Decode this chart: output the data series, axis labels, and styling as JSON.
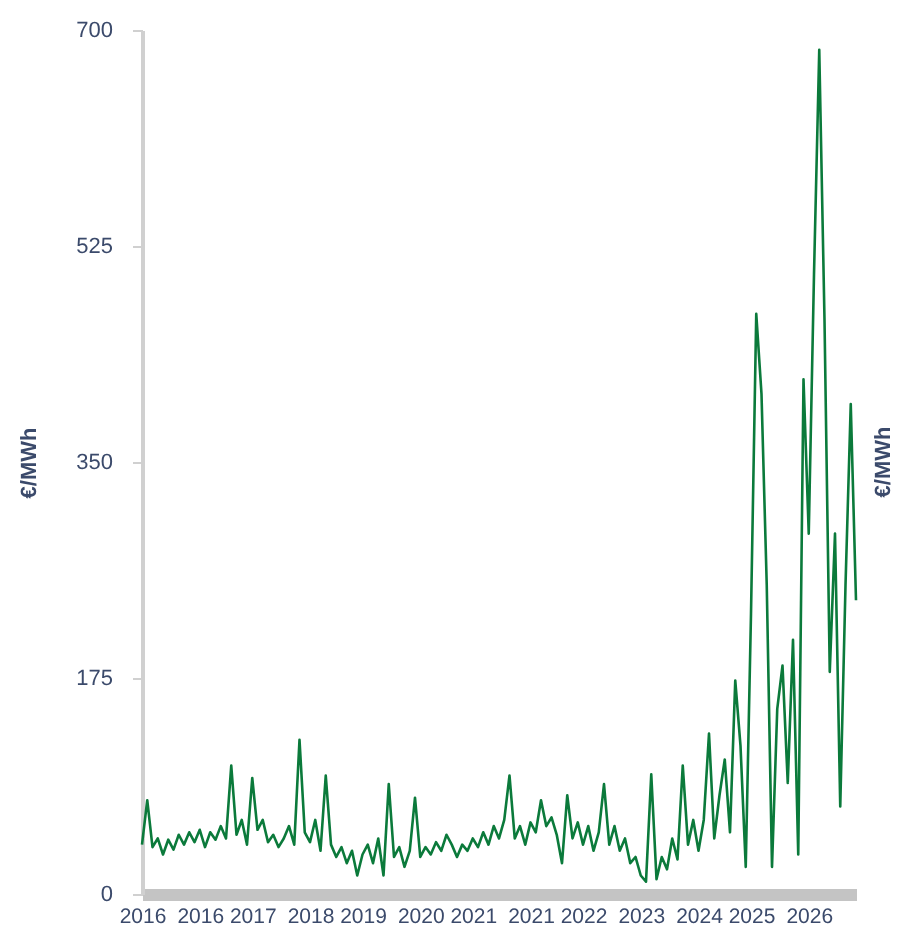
{
  "chart_data": {
    "type": "line",
    "ylabel": "€/MWh",
    "y2label": "€/MWh",
    "ylim": [
      0,
      700
    ],
    "yticks": [
      0,
      175,
      350,
      525,
      700
    ],
    "categories": [
      "2016",
      null,
      null,
      null,
      null,
      null,
      null,
      null,
      null,
      null,
      null,
      "2016",
      null,
      null,
      null,
      null,
      null,
      null,
      null,
      null,
      null,
      "2017",
      null,
      null,
      null,
      null,
      null,
      null,
      null,
      null,
      null,
      null,
      "2018",
      null,
      null,
      null,
      null,
      null,
      null,
      null,
      null,
      null,
      "2019",
      null,
      null,
      null,
      null,
      null,
      null,
      null,
      null,
      null,
      null,
      "2020",
      null,
      null,
      null,
      null,
      null,
      null,
      null,
      null,
      null,
      "2021",
      null,
      null,
      null,
      null,
      null,
      null,
      null,
      null,
      null,
      null,
      "2021",
      null,
      null,
      null,
      null,
      null,
      null,
      null,
      null,
      null,
      "2022",
      null,
      null,
      null,
      null,
      null,
      null,
      null,
      null,
      null,
      null,
      "2023",
      null,
      null,
      null,
      null,
      null,
      null,
      null,
      null,
      null,
      null,
      "2024",
      null,
      null,
      null,
      null,
      null,
      null,
      null,
      null,
      null,
      "2025",
      null,
      null,
      null,
      null,
      null,
      null,
      null,
      null,
      null,
      null,
      "2026",
      null,
      null,
      null,
      null,
      null,
      null,
      null,
      null,
      null
    ],
    "grid": false,
    "marker": "none",
    "line_style": "solid",
    "series": [
      {
        "color": "#0b7a3b",
        "values": [
          40,
          76,
          38,
          45,
          32,
          44,
          36,
          48,
          40,
          50,
          42,
          52,
          38,
          50,
          44,
          55,
          45,
          104,
          48,
          60,
          40,
          94,
          52,
          60,
          42,
          48,
          38,
          45,
          55,
          40,
          125,
          50,
          42,
          60,
          35,
          96,
          40,
          30,
          38,
          25,
          35,
          15,
          32,
          40,
          25,
          45,
          15,
          89,
          30,
          38,
          22,
          35,
          78,
          30,
          38,
          32,
          42,
          35,
          48,
          40,
          30,
          40,
          35,
          45,
          38,
          50,
          40,
          55,
          45,
          60,
          96,
          45,
          55,
          40,
          58,
          50,
          76,
          55,
          62,
          48,
          25,
          80,
          45,
          58,
          40,
          55,
          35,
          50,
          89,
          40,
          55,
          35,
          45,
          25,
          30,
          15,
          10,
          97,
          12,
          30,
          20,
          45,
          28,
          104,
          40,
          60,
          35,
          60,
          130,
          45,
          80,
          109,
          50,
          173,
          120,
          22,
          227,
          470,
          405,
          250,
          22,
          150,
          185,
          90,
          206,
          32,
          417,
          292,
          502,
          684,
          465,
          180,
          292,
          71,
          250,
          397,
          238
        ]
      }
    ]
  }
}
